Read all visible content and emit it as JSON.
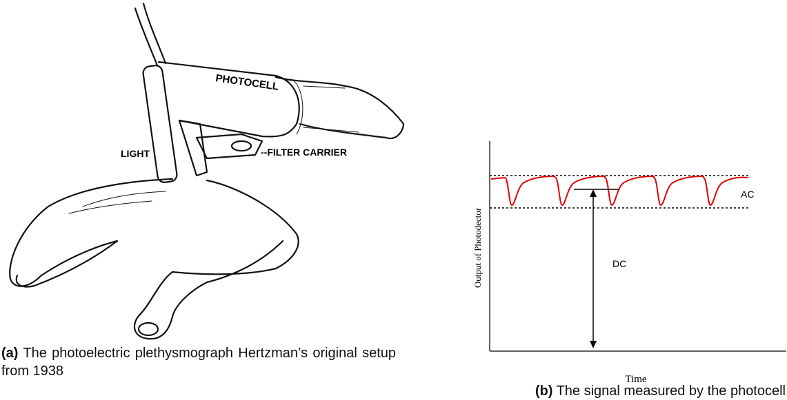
{
  "figure_a": {
    "labels": {
      "photocell": "PHOTOCELL",
      "light": "LIGHT",
      "filter_carrier": "--FILTER CARRIER"
    },
    "caption": {
      "label": "(a)",
      "text": "The photoelectric plethysmograph Hertzman’s original setup from 1938"
    }
  },
  "figure_b": {
    "y_label": "Output of Photodector",
    "x_label": "Time",
    "ac_label": "AC",
    "dc_label": "DC",
    "caption": {
      "label": "(b)",
      "text": "The signal measured by the photocell"
    }
  }
}
